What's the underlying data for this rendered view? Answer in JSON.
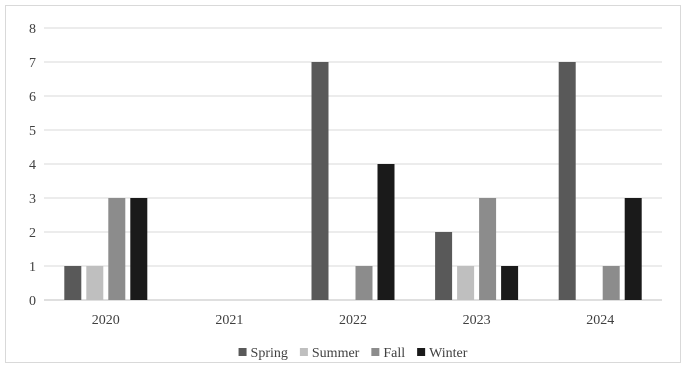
{
  "chart_data": {
    "type": "bar",
    "title": "",
    "xlabel": "",
    "ylabel": "",
    "categories": [
      "2020",
      "2021",
      "2022",
      "2023",
      "2024"
    ],
    "series": [
      {
        "name": "Spring",
        "values": [
          1,
          0,
          7,
          2,
          7
        ],
        "color": "#595959"
      },
      {
        "name": "Summer",
        "values": [
          1,
          0,
          0,
          1,
          0
        ],
        "color": "#bfbfbf"
      },
      {
        "name": "Fall",
        "values": [
          3,
          0,
          1,
          3,
          1
        ],
        "color": "#8c8c8c"
      },
      {
        "name": "Winter",
        "values": [
          3,
          0,
          4,
          1,
          3
        ],
        "color": "#1a1a1a"
      }
    ],
    "ylim": [
      0,
      8
    ],
    "yticks": [
      "0",
      "1",
      "2",
      "3",
      "4",
      "5",
      "6",
      "7",
      "8"
    ],
    "grid": "horizontal",
    "legend": "bottom"
  }
}
